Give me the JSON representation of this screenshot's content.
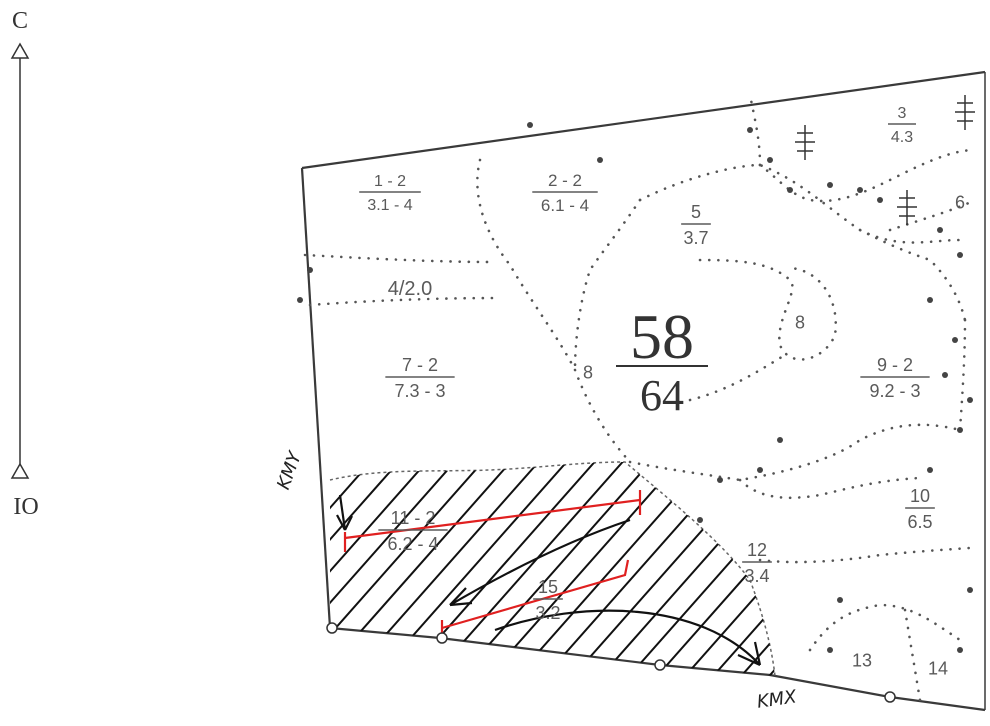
{
  "compass": {
    "north": "C",
    "south": "IO"
  },
  "quarter": {
    "numerator": "58",
    "denominator": "64"
  },
  "plots": [
    {
      "id": "p1",
      "top": "1 - 2",
      "bottom": "3.1 - 4"
    },
    {
      "id": "p2",
      "top": "2 - 2",
      "bottom": "6.1 - 4"
    },
    {
      "id": "p3",
      "top": "3",
      "bottom": "4.3"
    },
    {
      "id": "p4",
      "text": "4/2.0"
    },
    {
      "id": "p5",
      "top": "5",
      "bottom": "3.7"
    },
    {
      "id": "p6",
      "text": "6"
    },
    {
      "id": "p7",
      "top": "7 - 2",
      "bottom": "7.3 - 3"
    },
    {
      "id": "p8a",
      "text": "8"
    },
    {
      "id": "p8b",
      "text": "8"
    },
    {
      "id": "p9",
      "top": "9 - 2",
      "bottom": "9.2 - 3"
    },
    {
      "id": "p10",
      "top": "10",
      "bottom": "6.5"
    },
    {
      "id": "p11",
      "top": "11 - 2",
      "bottom": "6.2 - 4"
    },
    {
      "id": "p12",
      "top": "12",
      "bottom": "3.4"
    },
    {
      "id": "p15",
      "top": "15",
      "bottom": "3.2"
    },
    {
      "id": "p13",
      "text": "13"
    },
    {
      "id": "p14",
      "text": "14"
    }
  ],
  "annotations": {
    "left_mark": "KMY",
    "bottom_mark": "KMX"
  },
  "colors": {
    "boundary": "#3a3a3a",
    "hatch": "#111111",
    "red_line": "#e02020",
    "dots": "#555555"
  }
}
